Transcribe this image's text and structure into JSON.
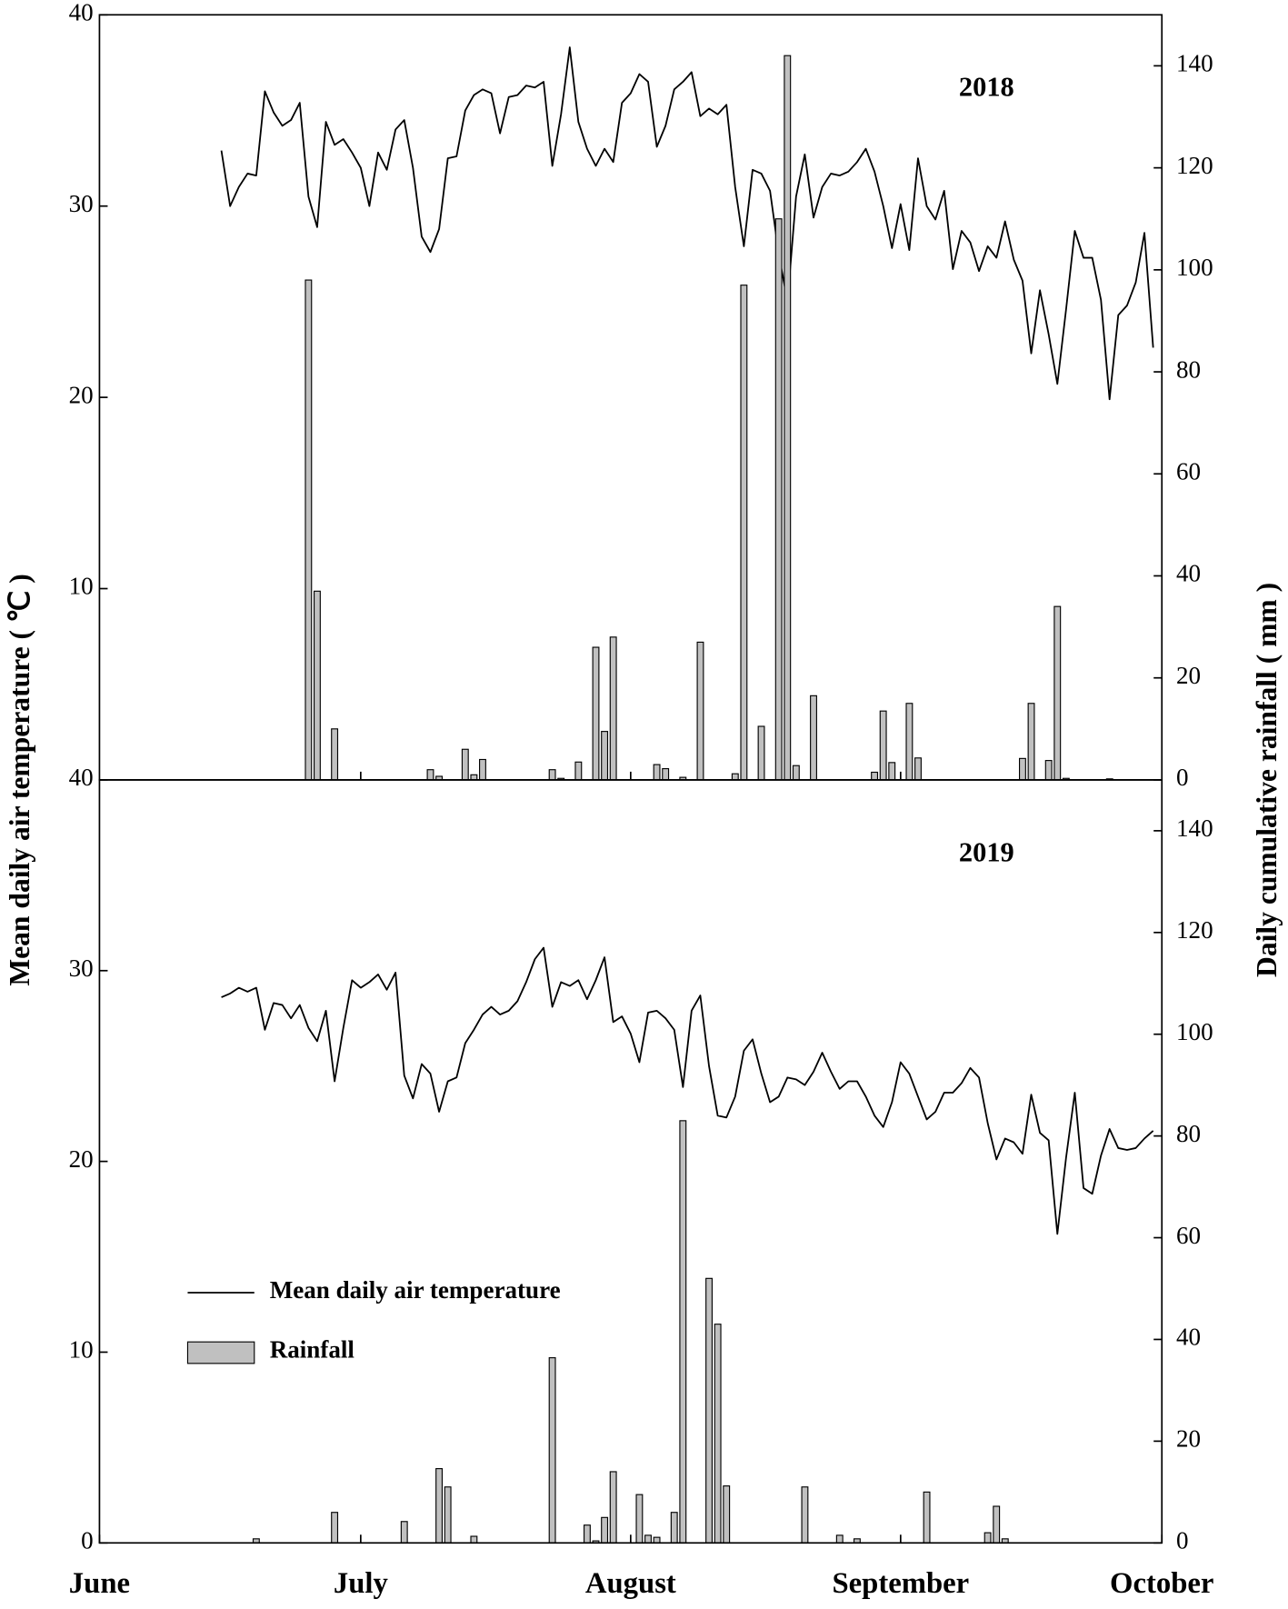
{
  "chart_data": [
    {
      "type": "combo",
      "annotation": "2018",
      "ylabel": "Mean daily air temperature ( ℃ )",
      "y2label": "Daily cumulative rainfall ( mm )",
      "xlim": [
        0,
        122
      ],
      "xticks": [
        30,
        61,
        92
      ],
      "ylim": [
        0,
        40
      ],
      "yticks": [
        10,
        20,
        30,
        40
      ],
      "y2lim": [
        0,
        150
      ],
      "y2ticks": [
        0,
        20,
        40,
        60,
        80,
        100,
        120,
        140
      ],
      "series": [
        {
          "type": "line",
          "color": "#000000",
          "x": [
            14,
            15,
            16,
            17,
            18,
            19,
            20,
            21,
            22,
            23,
            24,
            25,
            26,
            27,
            28,
            29,
            30,
            31,
            32,
            33,
            34,
            35,
            36,
            37,
            38,
            39,
            40,
            41,
            42,
            43,
            44,
            45,
            46,
            47,
            48,
            49,
            50,
            51,
            52,
            53,
            54,
            55,
            56,
            57,
            58,
            59,
            60,
            61,
            62,
            63,
            64,
            65,
            66,
            67,
            68,
            69,
            70,
            71,
            72,
            73,
            74,
            75,
            76,
            77,
            78,
            79,
            80,
            81,
            82,
            83,
            84,
            85,
            86,
            87,
            88,
            89,
            90,
            91,
            92,
            93,
            94,
            95,
            96,
            97,
            98,
            99,
            100,
            101,
            102,
            103,
            104,
            105,
            106,
            107,
            108,
            109,
            110,
            111,
            112,
            113,
            114,
            115,
            116,
            117,
            118,
            119,
            120,
            121
          ],
          "values": [
            32.9,
            30.0,
            31.0,
            31.7,
            31.6,
            36.0,
            34.9,
            34.2,
            34.5,
            35.4,
            30.5,
            28.9,
            34.4,
            33.2,
            33.5,
            32.8,
            32.0,
            30.0,
            32.8,
            31.9,
            34.0,
            34.5,
            32.0,
            28.4,
            27.6,
            28.8,
            32.5,
            32.6,
            35.0,
            35.8,
            36.1,
            35.9,
            33.8,
            35.7,
            35.8,
            36.3,
            36.2,
            36.5,
            32.1,
            34.8,
            38.3,
            34.4,
            33.0,
            32.1,
            33.0,
            32.3,
            35.4,
            35.9,
            36.9,
            36.5,
            33.1,
            34.2,
            36.1,
            36.5,
            37.0,
            34.7,
            35.1,
            34.8,
            35.3,
            31.0,
            27.9,
            31.9,
            31.7,
            30.8,
            27.5,
            25.0,
            30.5,
            32.7,
            29.4,
            31.0,
            31.7,
            31.6,
            31.8,
            32.3,
            33.0,
            31.8,
            30.0,
            27.8,
            30.1,
            27.7,
            32.5,
            30.0,
            29.3,
            30.8,
            26.7,
            28.7,
            28.1,
            26.6,
            27.9,
            27.3,
            29.2,
            27.2,
            26.1,
            22.3,
            25.6,
            23.3,
            20.7,
            24.6,
            28.7,
            27.3,
            27.3,
            25.1,
            19.9,
            24.3,
            24.8,
            26.0,
            28.6,
            22.6
          ]
        },
        {
          "type": "bar",
          "axis": "y2",
          "color": "#c0c0c0",
          "x": [
            24,
            25,
            27,
            38,
            39,
            42,
            43,
            44,
            52,
            53,
            55,
            57,
            58,
            59,
            64,
            65,
            67,
            69,
            73,
            74,
            76,
            78,
            79,
            80,
            82,
            89,
            90,
            91,
            93,
            94,
            106,
            107,
            109,
            110,
            111,
            116
          ],
          "values": [
            98,
            37,
            10,
            2,
            0.7,
            6,
            1,
            4,
            2,
            0.3,
            3.5,
            26,
            9.5,
            28,
            3,
            2.2,
            0.5,
            27,
            1.2,
            97,
            10.5,
            110,
            142,
            2.8,
            16.5,
            1.5,
            13.5,
            3.4,
            15,
            4.3,
            4.2,
            15,
            3.8,
            34,
            0.3,
            0.2
          ]
        }
      ]
    },
    {
      "type": "combo",
      "annotation": "2019",
      "xlim": [
        0,
        122
      ],
      "xticks": [
        {
          "value": 0,
          "label": "June"
        },
        {
          "value": 30,
          "label": "July"
        },
        {
          "value": 61,
          "label": "August"
        },
        {
          "value": 92,
          "label": "September"
        },
        {
          "value": 122,
          "label": "October"
        }
      ],
      "ylim": [
        0,
        40
      ],
      "yticks": [
        0,
        10,
        20,
        30,
        40
      ],
      "y2lim": [
        0,
        150
      ],
      "y2ticks": [
        0,
        20,
        40,
        60,
        80,
        100,
        120,
        140
      ],
      "legend": "lower left",
      "series": [
        {
          "name": "Mean daily air temperature",
          "type": "line",
          "color": "#000000",
          "x": [
            14,
            15,
            16,
            17,
            18,
            19,
            20,
            21,
            22,
            23,
            24,
            25,
            26,
            27,
            28,
            29,
            30,
            31,
            32,
            33,
            34,
            35,
            36,
            37,
            38,
            39,
            40,
            41,
            42,
            43,
            44,
            45,
            46,
            47,
            48,
            49,
            50,
            51,
            52,
            53,
            54,
            55,
            56,
            57,
            58,
            59,
            60,
            61,
            62,
            63,
            64,
            65,
            66,
            67,
            68,
            69,
            70,
            71,
            72,
            73,
            74,
            75,
            76,
            77,
            78,
            79,
            80,
            81,
            82,
            83,
            84,
            85,
            86,
            87,
            88,
            89,
            90,
            91,
            92,
            93,
            94,
            95,
            96,
            97,
            98,
            99,
            100,
            101,
            102,
            103,
            104,
            105,
            106,
            107,
            108,
            109,
            110,
            111,
            112,
            113,
            114,
            115,
            116,
            117,
            118,
            119,
            120,
            121
          ],
          "values": [
            28.6,
            28.8,
            29.1,
            28.9,
            29.1,
            26.9,
            28.3,
            28.2,
            27.5,
            28.2,
            27.0,
            26.3,
            27.9,
            24.2,
            27.0,
            29.5,
            29.1,
            29.4,
            29.8,
            29.0,
            29.9,
            24.5,
            23.3,
            25.1,
            24.6,
            22.6,
            24.2,
            24.4,
            26.2,
            26.9,
            27.7,
            28.1,
            27.7,
            27.9,
            28.4,
            29.4,
            30.6,
            31.2,
            28.1,
            29.4,
            29.2,
            29.5,
            28.5,
            29.5,
            30.7,
            27.3,
            27.6,
            26.7,
            25.2,
            27.8,
            27.9,
            27.5,
            26.9,
            23.9,
            27.9,
            28.7,
            25.0,
            22.4,
            22.3,
            23.4,
            25.8,
            26.4,
            24.6,
            23.1,
            23.4,
            24.4,
            24.3,
            24.0,
            24.7,
            25.7,
            24.7,
            23.8,
            24.2,
            24.2,
            23.4,
            22.4,
            21.8,
            23.1,
            25.2,
            24.6,
            23.4,
            22.2,
            22.6,
            23.6,
            23.6,
            24.1,
            24.9,
            24.4,
            22.0,
            20.1,
            21.2,
            21.0,
            20.4,
            23.5,
            21.5,
            21.1,
            16.2,
            20.2,
            23.6,
            18.6,
            18.3,
            20.3,
            21.7,
            20.7,
            20.6,
            20.7,
            21.2,
            21.6
          ]
        },
        {
          "name": "Rainfall",
          "type": "bar",
          "axis": "y2",
          "color": "#c0c0c0",
          "x": [
            18,
            27,
            35,
            39,
            40,
            43,
            52,
            56,
            57,
            58,
            59,
            62,
            63,
            64,
            66,
            67,
            70,
            71,
            72,
            81,
            85,
            87,
            95,
            102,
            103,
            104
          ],
          "values": [
            0.8,
            6,
            4.2,
            14.6,
            11,
            1.3,
            36.4,
            3.5,
            0.4,
            5,
            14,
            9.5,
            1.5,
            1.1,
            6,
            83,
            52,
            43,
            11.2,
            11,
            1.5,
            0.8,
            10,
            2,
            7.2,
            0.8
          ]
        }
      ]
    }
  ]
}
